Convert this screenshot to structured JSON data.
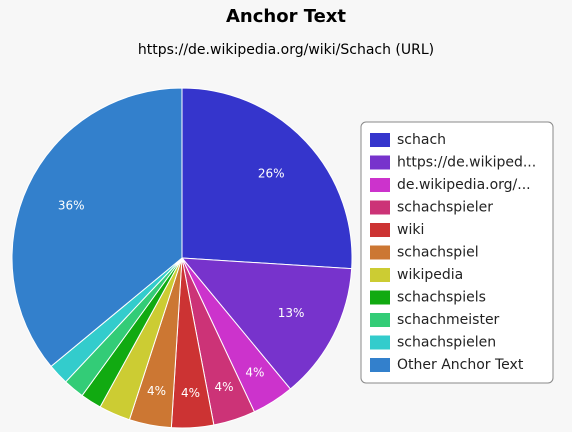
{
  "chart_data": {
    "type": "pie",
    "title": "Anchor Text",
    "subtitle": "https://de.wikipedia.org/wiki/Schach (URL)",
    "categories": [
      "schach",
      "https://de.wikiped...",
      "de.wikipedia.org/...",
      "schachspieler",
      "wiki",
      "schachspiel",
      "wikipedia",
      "schachspiels",
      "schachmeister",
      "schachspielen",
      "Other Anchor Text"
    ],
    "values": [
      26,
      13,
      4,
      4,
      4,
      4,
      3,
      2,
      2,
      2,
      36
    ],
    "value_labels": [
      "26%",
      "13%",
      "4%",
      "4%",
      "4%",
      "4%",
      null,
      null,
      null,
      null,
      "36%"
    ],
    "colors": [
      "#3535cc",
      "#7733cc",
      "#cc33cc",
      "#cc3377",
      "#cc3333",
      "#cc7733",
      "#cccc33",
      "#11aa11",
      "#33cc77",
      "#33cccc",
      "#3380cc"
    ],
    "legend": "right"
  }
}
